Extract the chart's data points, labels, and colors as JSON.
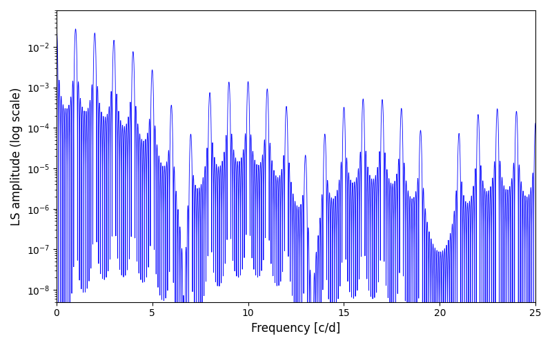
{
  "title": "",
  "xlabel": "Frequency [c/d]",
  "ylabel": "LS amplitude (log scale)",
  "line_color": "#0000ff",
  "line_width": 0.6,
  "xmin": 0,
  "xmax": 25,
  "ymin": 5e-09,
  "ymax": 0.08,
  "figsize": [
    8.0,
    5.0
  ],
  "dpi": 100,
  "yscale": "log",
  "freq_max": 25.0,
  "n_points": 8000
}
